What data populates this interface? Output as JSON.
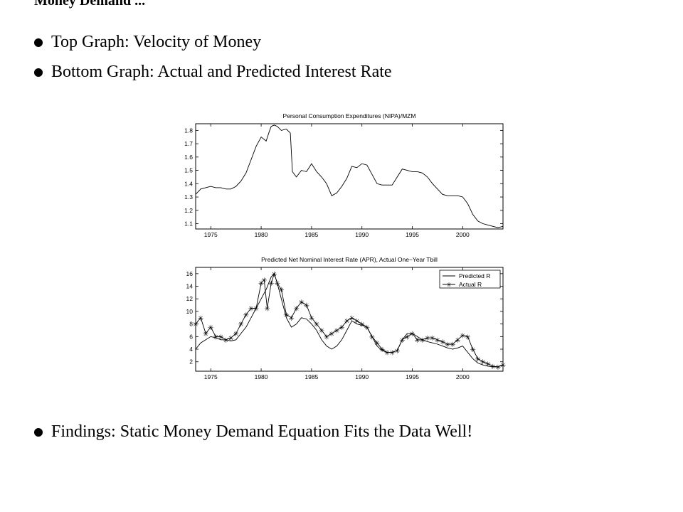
{
  "slide": {
    "title": "Money Demand ...",
    "bullets": [
      "Top Graph: Velocity of Money",
      "Bottom Graph: Actual and Predicted Interest Rate",
      "Findings: Static Money Demand Equation Fits the Data Well!"
    ]
  },
  "chart_data": [
    {
      "type": "line",
      "title": "Personal Consumption Expenditures (NIPA)/MZM",
      "xlabel": "",
      "ylabel": "",
      "xlim": [
        1973.5,
        2004.0
      ],
      "ylim": [
        1.06,
        1.85
      ],
      "xticks": [
        1975,
        1980,
        1985,
        1990,
        1995,
        2000
      ],
      "yticks": [
        1.1,
        1.2,
        1.3,
        1.4,
        1.5,
        1.6,
        1.7,
        1.8
      ],
      "series": [
        {
          "x": [
            1973.5,
            1974.0,
            1974.5,
            1975.0,
            1975.5,
            1976.0,
            1976.5,
            1977.0,
            1977.5,
            1978.0,
            1978.5,
            1979.0,
            1979.5,
            1980.0,
            1980.5,
            1980.8,
            1981.0,
            1981.3,
            1981.6,
            1982.0,
            1982.5,
            1982.9,
            1983.1,
            1983.5,
            1984.0,
            1984.5,
            1985.0,
            1985.5,
            1986.0,
            1986.5,
            1987.0,
            1987.5,
            1988.0,
            1988.5,
            1989.0,
            1989.5,
            1990.0,
            1990.5,
            1991.0,
            1991.5,
            1992.0,
            1992.5,
            1993.0,
            1993.5,
            1994.0,
            1994.5,
            1995.0,
            1995.5,
            1996.0,
            1996.5,
            1997.0,
            1997.5,
            1998.0,
            1998.5,
            1999.0,
            1999.5,
            2000.0,
            2000.5,
            2001.0,
            2001.5,
            2002.0,
            2002.5,
            2003.0,
            2003.5,
            2004.0
          ],
          "y": [
            1.32,
            1.36,
            1.37,
            1.38,
            1.37,
            1.37,
            1.36,
            1.36,
            1.38,
            1.42,
            1.48,
            1.58,
            1.68,
            1.75,
            1.72,
            1.79,
            1.83,
            1.84,
            1.83,
            1.8,
            1.81,
            1.78,
            1.49,
            1.45,
            1.5,
            1.49,
            1.55,
            1.49,
            1.45,
            1.4,
            1.31,
            1.33,
            1.38,
            1.44,
            1.53,
            1.52,
            1.55,
            1.54,
            1.47,
            1.4,
            1.39,
            1.39,
            1.39,
            1.45,
            1.51,
            1.5,
            1.49,
            1.49,
            1.48,
            1.45,
            1.4,
            1.36,
            1.32,
            1.31,
            1.31,
            1.31,
            1.3,
            1.25,
            1.17,
            1.12,
            1.1,
            1.09,
            1.08,
            1.07,
            1.08
          ]
        }
      ],
      "grid": false
    },
    {
      "type": "line",
      "title": "Predicted Net Nominal Interest Rate (APR), Actual One−Year Tbill",
      "xlabel": "",
      "ylabel": "",
      "xlim": [
        1973.5,
        2004.0
      ],
      "ylim": [
        0.5,
        17
      ],
      "xticks": [
        1975,
        1980,
        1985,
        1990,
        1995,
        2000
      ],
      "yticks": [
        2,
        4,
        6,
        8,
        10,
        12,
        14,
        16
      ],
      "legend": "top-right",
      "series": [
        {
          "name": "Predicted R",
          "marker": "line",
          "x": [
            1973.5,
            1974.0,
            1974.5,
            1975.0,
            1975.5,
            1976.0,
            1976.5,
            1977.0,
            1977.5,
            1978.0,
            1978.5,
            1979.0,
            1979.5,
            1980.0,
            1980.5,
            1981.0,
            1981.3,
            1981.6,
            1982.0,
            1982.5,
            1983.0,
            1983.5,
            1984.0,
            1984.5,
            1985.0,
            1985.5,
            1986.0,
            1986.5,
            1987.0,
            1987.5,
            1988.0,
            1988.5,
            1989.0,
            1989.5,
            1990.0,
            1990.5,
            1991.0,
            1991.5,
            1992.0,
            1992.5,
            1993.0,
            1993.5,
            1994.0,
            1994.5,
            1995.0,
            1995.5,
            1996.0,
            1996.5,
            1997.0,
            1997.5,
            1998.0,
            1998.5,
            1999.0,
            1999.5,
            2000.0,
            2000.5,
            2001.0,
            2001.5,
            2002.0,
            2002.5,
            2003.0,
            2003.5,
            2004.0
          ],
          "y": [
            4.0,
            5.0,
            5.5,
            6.0,
            5.8,
            5.5,
            5.5,
            5.3,
            5.5,
            6.5,
            7.5,
            9.0,
            10.5,
            12.0,
            13.5,
            15.5,
            16.0,
            14.5,
            12.0,
            9.0,
            7.5,
            8.0,
            9.0,
            8.8,
            8.0,
            7.0,
            5.5,
            4.5,
            4.0,
            4.5,
            5.5,
            7.0,
            8.5,
            8.0,
            7.8,
            7.5,
            6.0,
            4.5,
            3.8,
            3.5,
            3.5,
            3.8,
            5.5,
            6.5,
            6.5,
            6.0,
            5.5,
            5.2,
            5.0,
            4.8,
            4.5,
            4.2,
            4.0,
            4.2,
            4.5,
            3.5,
            2.5,
            1.8,
            1.5,
            1.3,
            1.2,
            1.2,
            1.5
          ]
        },
        {
          "name": "Actual R",
          "marker": "star",
          "x": [
            1973.5,
            1974.0,
            1974.5,
            1975.0,
            1975.5,
            1976.0,
            1976.5,
            1977.0,
            1977.5,
            1978.0,
            1978.5,
            1979.0,
            1979.5,
            1980.0,
            1980.3,
            1980.6,
            1981.0,
            1981.3,
            1981.6,
            1982.0,
            1982.5,
            1983.0,
            1983.5,
            1984.0,
            1984.5,
            1985.0,
            1985.5,
            1986.0,
            1986.5,
            1987.0,
            1987.5,
            1988.0,
            1988.5,
            1989.0,
            1989.5,
            1990.0,
            1990.5,
            1991.0,
            1991.5,
            1992.0,
            1992.5,
            1993.0,
            1993.5,
            1994.0,
            1994.5,
            1995.0,
            1995.5,
            1996.0,
            1996.5,
            1997.0,
            1997.5,
            1998.0,
            1998.5,
            1999.0,
            1999.5,
            2000.0,
            2000.5,
            2001.0,
            2001.5,
            2002.0,
            2002.5,
            2003.0,
            2003.5,
            2004.0
          ],
          "y": [
            8.0,
            9.0,
            6.5,
            7.5,
            6.0,
            6.0,
            5.5,
            5.8,
            6.5,
            8.0,
            9.5,
            10.5,
            10.5,
            14.5,
            15.0,
            10.5,
            14.5,
            16.0,
            14.5,
            13.5,
            9.5,
            9.0,
            10.5,
            11.5,
            11.0,
            9.0,
            8.0,
            7.0,
            6.0,
            6.5,
            7.0,
            7.5,
            8.5,
            9.0,
            8.5,
            8.0,
            7.5,
            6.0,
            5.0,
            4.0,
            3.5,
            3.5,
            3.8,
            5.5,
            6.0,
            6.5,
            5.5,
            5.5,
            5.8,
            5.8,
            5.5,
            5.2,
            4.8,
            4.8,
            5.5,
            6.2,
            6.0,
            4.0,
            2.5,
            2.0,
            1.7,
            1.3,
            1.2,
            1.5
          ]
        }
      ],
      "grid": false
    }
  ]
}
